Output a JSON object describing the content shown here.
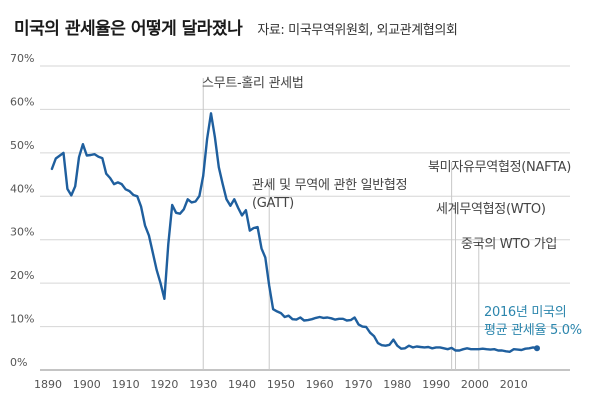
{
  "header": {
    "title": "미국의 관세율은 어떻게 달라졌나",
    "source": "자료: 미국무역위원회, 외교관계협의회"
  },
  "colors": {
    "line": "#1f5f9e",
    "accent": "#2c86ad",
    "grid": "#d6d6d6",
    "event_line": "#c8c8c8"
  },
  "chart_data": {
    "type": "line",
    "title": "미국의 관세율은 어떻게 달라졌나",
    "xlabel": "",
    "ylabel": "",
    "xlim": [
      1889,
      2016
    ],
    "ylim": [
      0,
      70
    ],
    "grid": true,
    "yticks": [
      0,
      10,
      20,
      30,
      40,
      50,
      60,
      70
    ],
    "ytick_labels": [
      "0%",
      "10%",
      "20%",
      "30%",
      "40%",
      "50%",
      "60%",
      "70%"
    ],
    "xticks": [
      1890,
      1900,
      1910,
      1920,
      1930,
      1940,
      1950,
      1960,
      1970,
      1980,
      1990,
      2000,
      2010
    ],
    "xtick_labels": [
      "1890",
      "1900",
      "1910",
      "1920",
      "1930",
      "1940",
      "1950",
      "1960",
      "1970",
      "1980",
      "1990",
      "2000",
      "2010"
    ],
    "series": [
      {
        "name": "평균 관세율",
        "x": [
          1891,
          1892,
          1894,
          1895,
          1896,
          1897,
          1898,
          1899,
          1900,
          1901,
          1902,
          1903,
          1904,
          1905,
          1906,
          1907,
          1908,
          1909,
          1910,
          1911,
          1912,
          1913,
          1914,
          1915,
          1916,
          1917,
          1918,
          1919,
          1920,
          1921,
          1922,
          1923,
          1924,
          1925,
          1926,
          1927,
          1928,
          1929,
          1930,
          1931,
          1932,
          1933,
          1934,
          1935,
          1936,
          1937,
          1938,
          1939,
          1940,
          1941,
          1942,
          1943,
          1944,
          1945,
          1946,
          1947,
          1948,
          1949,
          1950,
          1951,
          1952,
          1953,
          1954,
          1955,
          1956,
          1957,
          1958,
          1959,
          1960,
          1961,
          1962,
          1963,
          1964,
          1965,
          1966,
          1967,
          1968,
          1969,
          1970,
          1971,
          1972,
          1973,
          1974,
          1975,
          1976,
          1977,
          1978,
          1979,
          1980,
          1981,
          1982,
          1983,
          1984,
          1985,
          1986,
          1987,
          1988,
          1989,
          1990,
          1991,
          1992,
          1993,
          1994,
          1995,
          1996,
          1997,
          1998,
          1999,
          2000,
          2001,
          2002,
          2003,
          2004,
          2005,
          2006,
          2007,
          2008,
          2009,
          2010,
          2011,
          2012,
          2013,
          2014,
          2015,
          2016
        ],
        "y": [
          46.3,
          48.7,
          50.0,
          41.7,
          40.2,
          42.3,
          49.0,
          52.0,
          49.4,
          49.5,
          49.7,
          49.1,
          48.8,
          45.2,
          44.2,
          42.8,
          43.2,
          42.8,
          41.6,
          41.2,
          40.3,
          40.0,
          37.6,
          33.3,
          31.0,
          27.0,
          23.0,
          20.0,
          16.4,
          29.0,
          38.0,
          36.2,
          36.0,
          37.0,
          39.3,
          38.6,
          38.8,
          40.1,
          44.7,
          53.2,
          59.1,
          53.6,
          46.7,
          42.9,
          39.3,
          37.8,
          39.3,
          37.3,
          35.6,
          36.8,
          32.1,
          32.7,
          32.9,
          28.0,
          25.9,
          19.4,
          14.0,
          13.5,
          13.1,
          12.2,
          12.5,
          11.7,
          11.6,
          12.1,
          11.4,
          11.5,
          11.7,
          12.0,
          12.2,
          12.0,
          12.1,
          11.9,
          11.6,
          11.8,
          11.8,
          11.4,
          11.5,
          12.1,
          10.5,
          10.0,
          9.9,
          8.6,
          7.8,
          6.2,
          5.7,
          5.6,
          5.8,
          7.0,
          5.6,
          4.9,
          5.0,
          5.6,
          5.2,
          5.4,
          5.3,
          5.2,
          5.3,
          5.0,
          5.2,
          5.2,
          5.0,
          4.8,
          5.1,
          4.5,
          4.5,
          4.8,
          5.0,
          4.8,
          4.8,
          4.8,
          4.9,
          4.8,
          4.7,
          4.8,
          4.5,
          4.5,
          4.3,
          4.2,
          4.8,
          4.7,
          4.6,
          4.9,
          5.0,
          5.2,
          5.0
        ]
      }
    ],
    "events": [
      {
        "year": 1930,
        "label": "스무트-홀리 관세법"
      },
      {
        "year": 1947,
        "label_line1": "관세 및 무역에 관한 일반협정",
        "label_line2": "(GATT)"
      },
      {
        "year": 1994,
        "label": "북미자유무역협정(NAFTA)"
      },
      {
        "year": 1995,
        "label": "세계무역협정(WTO)"
      },
      {
        "year": 2001,
        "label": "중국의 WTO 가입"
      }
    ],
    "annotation": {
      "line1": "2016년 미국의",
      "line2": "평균 관세율 5.0%",
      "year": 2016,
      "value": 5.0
    }
  }
}
